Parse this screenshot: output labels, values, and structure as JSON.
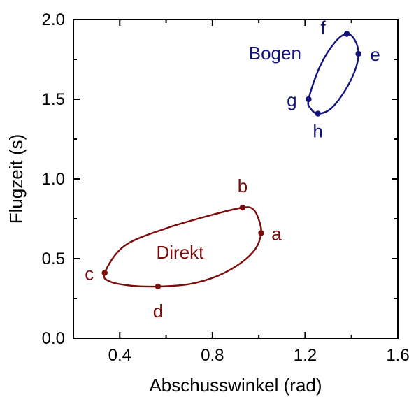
{
  "chart_data": {
    "type": "line",
    "xlabel": "Abschusswinkel (rad)",
    "ylabel": "Flugzeit  (s)",
    "xlim": [
      0.2,
      1.6
    ],
    "ylim": [
      0.0,
      2.0
    ],
    "xticks": [
      0.4,
      0.8,
      1.2,
      1.6
    ],
    "xtick_labels": [
      "0.4",
      "0.8",
      "1.2",
      "1.6"
    ],
    "yticks": [
      0.0,
      0.5,
      1.0,
      1.5,
      2.0
    ],
    "ytick_labels": [
      "0.0",
      "0.5",
      "1.0",
      "1.5",
      "2.0"
    ],
    "grid": false,
    "series": [
      {
        "name": "Direkt",
        "color": "#7a0c0c",
        "closed": true,
        "x": [
          1.01,
          1.0,
          0.975,
          0.93,
          0.8,
          0.6,
          0.42,
          0.335,
          0.36,
          0.45,
          0.565,
          0.7,
          0.82,
          0.92,
          0.985
        ],
        "y": [
          0.66,
          0.745,
          0.81,
          0.82,
          0.775,
          0.69,
          0.58,
          0.41,
          0.355,
          0.33,
          0.325,
          0.34,
          0.39,
          0.47,
          0.56
        ],
        "points": [
          {
            "label": "a",
            "x": 1.01,
            "y": 0.66
          },
          {
            "label": "b",
            "x": 0.93,
            "y": 0.82
          },
          {
            "label": "c",
            "x": 0.335,
            "y": 0.41
          },
          {
            "label": "d",
            "x": 0.565,
            "y": 0.325
          }
        ]
      },
      {
        "name": "Bogen",
        "color": "#13137f",
        "closed": true,
        "x": [
          1.43,
          1.415,
          1.38,
          1.33,
          1.265,
          1.215,
          1.225,
          1.255,
          1.31,
          1.37,
          1.415
        ],
        "y": [
          1.785,
          1.87,
          1.91,
          1.86,
          1.71,
          1.5,
          1.44,
          1.41,
          1.44,
          1.55,
          1.68
        ],
        "points": [
          {
            "label": "e",
            "x": 1.43,
            "y": 1.785
          },
          {
            "label": "f",
            "x": 1.38,
            "y": 1.91
          },
          {
            "label": "g",
            "x": 1.215,
            "y": 1.5
          },
          {
            "label": "h",
            "x": 1.255,
            "y": 1.41
          }
        ]
      }
    ]
  }
}
